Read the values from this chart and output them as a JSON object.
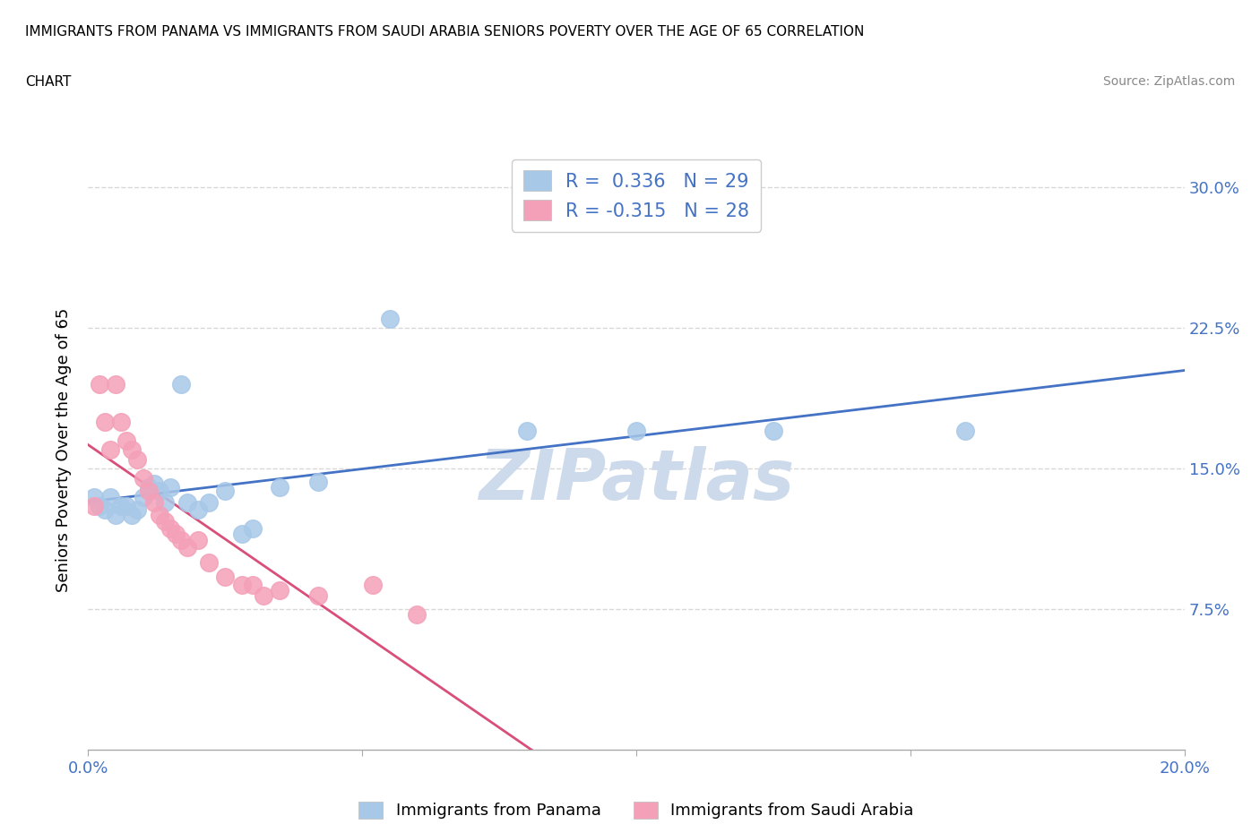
{
  "title_line1": "IMMIGRANTS FROM PANAMA VS IMMIGRANTS FROM SAUDI ARABIA SENIORS POVERTY OVER THE AGE OF 65 CORRELATION",
  "title_line2": "CHART",
  "source": "Source: ZipAtlas.com",
  "ylabel": "Seniors Poverty Over the Age of 65",
  "xlim": [
    0.0,
    0.2
  ],
  "ylim": [
    0.0,
    0.32
  ],
  "yticks": [
    0.075,
    0.15,
    0.225,
    0.3
  ],
  "ytick_labels": [
    "7.5%",
    "15.0%",
    "22.5%",
    "30.0%"
  ],
  "xticks": [
    0.0,
    0.05,
    0.1,
    0.15,
    0.2
  ],
  "xtick_labels": [
    "0.0%",
    "",
    "",
    "",
    "20.0%"
  ],
  "r_panama": 0.336,
  "n_panama": 29,
  "r_saudi": -0.315,
  "n_saudi": 28,
  "color_panama": "#a8c8e8",
  "color_saudi": "#f4a0b8",
  "line_color_panama": "#4472c4",
  "line_color_saudi": "#d94f7a",
  "watermark": "ZIPatlas",
  "watermark_color": "#cddaeb",
  "panama_x": [
    0.001,
    0.002,
    0.003,
    0.004,
    0.005,
    0.006,
    0.007,
    0.008,
    0.009,
    0.01,
    0.011,
    0.012,
    0.013,
    0.014,
    0.015,
    0.017,
    0.018,
    0.02,
    0.022,
    0.025,
    0.028,
    0.03,
    0.035,
    0.042,
    0.055,
    0.08,
    0.1,
    0.125,
    0.16
  ],
  "panama_y": [
    0.135,
    0.13,
    0.128,
    0.135,
    0.125,
    0.13,
    0.13,
    0.125,
    0.128,
    0.135,
    0.14,
    0.142,
    0.138,
    0.132,
    0.14,
    0.195,
    0.132,
    0.128,
    0.132,
    0.138,
    0.115,
    0.118,
    0.14,
    0.143,
    0.23,
    0.17,
    0.17,
    0.17,
    0.17
  ],
  "saudi_x": [
    0.001,
    0.002,
    0.003,
    0.004,
    0.005,
    0.006,
    0.007,
    0.008,
    0.009,
    0.01,
    0.011,
    0.012,
    0.013,
    0.014,
    0.015,
    0.016,
    0.017,
    0.018,
    0.02,
    0.022,
    0.025,
    0.028,
    0.03,
    0.032,
    0.035,
    0.042,
    0.052,
    0.06
  ],
  "saudi_y": [
    0.13,
    0.195,
    0.175,
    0.16,
    0.195,
    0.175,
    0.165,
    0.16,
    0.155,
    0.145,
    0.138,
    0.132,
    0.125,
    0.122,
    0.118,
    0.115,
    0.112,
    0.108,
    0.112,
    0.1,
    0.092,
    0.088,
    0.088,
    0.082,
    0.085,
    0.082,
    0.088,
    0.072
  ],
  "background_color": "#ffffff",
  "grid_color": "#d8d8d8",
  "tick_color": "#4472c4"
}
